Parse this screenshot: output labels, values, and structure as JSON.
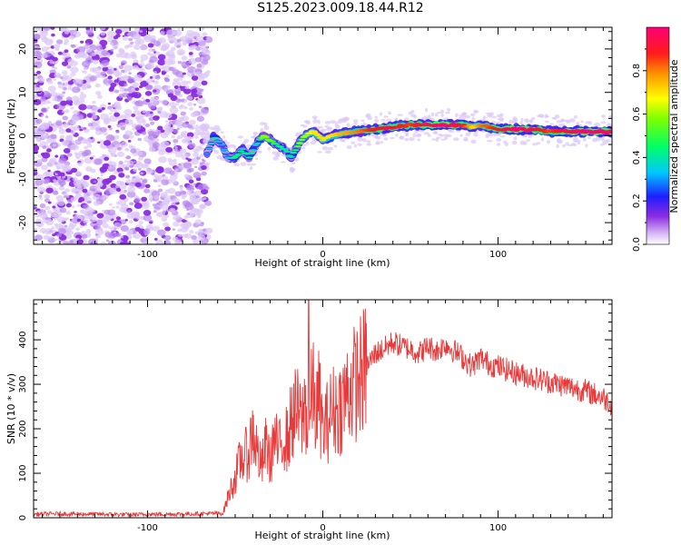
{
  "figure": {
    "title": "S125.2023.009.18.44.R12"
  },
  "chart_data": [
    {
      "type": "heatmap",
      "xlabel": "Height of straight line (km)",
      "ylabel": "Frequency (Hz)",
      "xlim": [
        -165,
        165
      ],
      "ylim": [
        -25,
        25
      ],
      "xticks": [
        -100,
        0,
        100
      ],
      "yticks": [
        -20,
        -10,
        0,
        10,
        20
      ],
      "grid": false,
      "colorbar": {
        "label": "Normalized spectral amplitude",
        "ticks": [
          0.0,
          0.2,
          0.4,
          0.6,
          0.8
        ],
        "range": [
          0,
          1
        ],
        "colormap": "rainbow"
      },
      "noise_region_x": [
        -165,
        -67
      ],
      "ridge": {
        "x": [
          -66,
          -62,
          -58,
          -54,
          -50,
          -46,
          -42,
          -38,
          -34,
          -30,
          -26,
          -22,
          -18,
          -14,
          -10,
          -5,
          0,
          5,
          10,
          20,
          30,
          40,
          50,
          60,
          70,
          80,
          86,
          90,
          100,
          110,
          120,
          130,
          140,
          150,
          160,
          165
        ],
        "freq_hz": [
          -4,
          0,
          -2,
          -5,
          -5,
          -3,
          -5,
          -2,
          0,
          -1,
          -2,
          -3,
          -5,
          -2,
          0,
          1,
          -1,
          0,
          0.5,
          1,
          1.5,
          2,
          2.5,
          2.5,
          2.5,
          2.5,
          2,
          2.5,
          1.5,
          1.5,
          1.5,
          1,
          1,
          1,
          1,
          1
        ],
        "amplitude": [
          0.3,
          0.45,
          0.3,
          0.35,
          0.45,
          0.4,
          0.45,
          0.35,
          0.6,
          0.55,
          0.45,
          0.4,
          0.4,
          0.55,
          0.6,
          0.7,
          0.7,
          0.7,
          0.75,
          0.8,
          0.9,
          0.95,
          0.85,
          0.95,
          1.0,
          0.9,
          0.7,
          0.8,
          0.9,
          1.0,
          0.95,
          0.85,
          0.95,
          1.0,
          1.0,
          0.95
        ]
      }
    },
    {
      "type": "line",
      "xlabel": "Height of straight line (km)",
      "ylabel": "SNR (10 * v/v)",
      "xlim": [
        -165,
        165
      ],
      "ylim": [
        0,
        490
      ],
      "xticks": [
        -100,
        0,
        100
      ],
      "yticks": [
        0,
        100,
        200,
        300,
        400
      ],
      "grid": false,
      "series": [
        {
          "color": "#e83a3a",
          "x": [
            -165,
            -150,
            -130,
            -110,
            -90,
            -70,
            -57,
            -53,
            -50,
            -47,
            -44,
            -42,
            -40,
            -38,
            -35,
            -32,
            -30,
            -28,
            -25,
            -22,
            -20,
            -18,
            -15,
            -12,
            -10,
            -8,
            -6,
            -4,
            -2,
            0,
            5,
            10,
            15,
            20,
            25,
            30,
            35,
            40,
            45,
            50,
            55,
            60,
            65,
            70,
            75,
            80,
            85,
            90,
            95,
            100,
            110,
            120,
            130,
            140,
            150,
            160,
            165
          ],
          "y": [
            8,
            9,
            8,
            7,
            8,
            9,
            10,
            60,
            90,
            130,
            140,
            150,
            200,
            160,
            110,
            170,
            120,
            180,
            150,
            190,
            170,
            220,
            240,
            210,
            260,
            160,
            300,
            230,
            270,
            190,
            240,
            250,
            290,
            310,
            340,
            370,
            380,
            395,
            385,
            380,
            370,
            385,
            375,
            390,
            375,
            360,
            340,
            360,
            345,
            340,
            325,
            315,
            305,
            295,
            285,
            270,
            255
          ]
        }
      ]
    }
  ]
}
